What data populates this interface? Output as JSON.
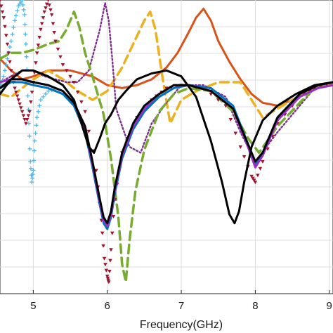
{
  "chart_data": {
    "type": "line",
    "title": "",
    "xlabel": "Frequency(GHz)",
    "ylabel": "",
    "xlim": [
      4.55,
      9.05
    ],
    "ylim": [
      0,
      1
    ],
    "x_ticks": [
      "5",
      "6",
      "7",
      "8",
      "9"
    ],
    "x_tick_values": [
      5,
      6,
      7,
      8,
      9
    ],
    "grid": true,
    "legend": "none",
    "series": [
      {
        "color": "#d95319",
        "style": "solid",
        "marker": "none",
        "x": [
          4.55,
          4.7,
          4.85,
          5.0,
          5.2,
          5.5,
          5.8,
          6.0,
          6.2,
          6.4,
          6.6,
          6.8,
          6.95,
          7.1,
          7.2,
          7.3,
          7.4,
          7.5,
          7.65,
          7.8,
          7.95,
          8.1,
          8.3,
          8.5,
          8.7,
          8.85,
          9.05
        ],
        "y": [
          0.8,
          0.76,
          0.73,
          0.74,
          0.76,
          0.76,
          0.74,
          0.71,
          0.7,
          0.71,
          0.73,
          0.77,
          0.82,
          0.89,
          0.94,
          0.97,
          0.93,
          0.86,
          0.79,
          0.73,
          0.68,
          0.65,
          0.64,
          0.66,
          0.69,
          0.71,
          0.71
        ]
      },
      {
        "color": "#edb120",
        "style": "dashed",
        "marker": "none",
        "x": [
          4.55,
          4.7,
          4.85,
          5.0,
          5.2,
          5.4,
          5.6,
          5.8,
          6.0,
          6.2,
          6.35,
          6.5,
          6.58,
          6.65,
          6.75,
          6.85,
          7.0,
          7.2,
          7.5,
          7.8,
          8.1,
          8.5,
          8.8,
          9.05
        ],
        "y": [
          0.68,
          0.67,
          0.7,
          0.73,
          0.76,
          0.73,
          0.69,
          0.66,
          0.69,
          0.77,
          0.85,
          0.93,
          0.96,
          0.9,
          0.73,
          0.58,
          0.66,
          0.69,
          0.72,
          0.72,
          0.6,
          0.66,
          0.7,
          0.72
        ]
      },
      {
        "color": "#7e2f8e",
        "style": "dotted",
        "marker": "none",
        "x": [
          4.55,
          4.7,
          4.85,
          5.0,
          5.15,
          5.3,
          5.45,
          5.6,
          5.75,
          5.9,
          5.97,
          6.02,
          6.07,
          6.12,
          6.2,
          6.3,
          6.45,
          6.6,
          6.8,
          7.0,
          7.3,
          7.6,
          7.8,
          8.0,
          8.3,
          8.6,
          8.8,
          9.05
        ],
        "y": [
          0.72,
          0.74,
          0.76,
          0.76,
          0.74,
          0.73,
          0.72,
          0.72,
          0.76,
          0.9,
          0.99,
          0.93,
          0.79,
          0.63,
          0.57,
          0.5,
          0.48,
          0.58,
          0.65,
          0.71,
          0.71,
          0.67,
          0.55,
          0.45,
          0.55,
          0.64,
          0.7,
          0.72
        ]
      },
      {
        "color": "#77ac30",
        "style": "dashed",
        "marker": "none",
        "x": [
          4.55,
          4.7,
          4.85,
          5.0,
          5.2,
          5.35,
          5.45,
          5.55,
          5.62,
          5.7,
          5.8,
          5.95,
          6.05,
          6.15,
          6.2,
          6.25,
          6.3,
          6.38,
          6.5,
          6.7,
          6.9,
          7.1,
          7.4,
          7.7,
          7.9,
          8.05,
          8.3,
          8.6,
          8.8,
          9.05
        ],
        "y": [
          0.8,
          0.82,
          0.82,
          0.83,
          0.85,
          0.86,
          0.9,
          0.96,
          0.91,
          0.82,
          0.74,
          0.61,
          0.46,
          0.26,
          0.1,
          0.04,
          0.18,
          0.35,
          0.49,
          0.62,
          0.68,
          0.7,
          0.69,
          0.62,
          0.53,
          0.48,
          0.57,
          0.65,
          0.7,
          0.72
        ]
      },
      {
        "color": "#4db8ec",
        "style": "none",
        "marker": "plus",
        "x": [
          4.55,
          4.6,
          4.65,
          4.7,
          4.75,
          4.8,
          4.85,
          4.88,
          4.9,
          4.92,
          4.94,
          4.96,
          4.98,
          5.0,
          5.02,
          5.05,
          5.1,
          5.2,
          5.35
        ],
        "y": [
          0.7,
          0.74,
          0.8,
          0.86,
          0.93,
          0.98,
          1.0,
          0.95,
          0.85,
          0.72,
          0.58,
          0.45,
          0.38,
          0.42,
          0.52,
          0.6,
          0.66,
          0.69,
          0.7
        ]
      },
      {
        "color": "#a2142f",
        "style": "none",
        "marker": "triangle",
        "x": [
          4.55,
          4.6,
          4.65,
          4.7,
          4.75,
          4.8,
          4.85,
          4.9,
          4.95,
          5.0,
          5.05,
          5.1,
          5.15,
          5.2,
          5.25,
          5.3,
          5.4,
          5.55,
          5.7,
          5.85,
          5.92,
          5.96,
          6.0,
          6.02,
          6.05,
          6.1,
          6.2,
          6.4,
          6.6,
          6.8,
          7.0,
          7.3,
          7.6,
          7.8,
          7.95,
          8.0,
          8.1,
          8.3,
          8.6,
          8.8,
          9.05
        ],
        "y": [
          1.0,
          0.94,
          0.85,
          0.76,
          0.7,
          0.66,
          0.62,
          0.58,
          0.62,
          0.72,
          0.82,
          0.9,
          0.96,
          1.0,
          0.95,
          0.86,
          0.78,
          0.72,
          0.62,
          0.42,
          0.25,
          0.12,
          0.06,
          0.04,
          0.15,
          0.32,
          0.48,
          0.6,
          0.66,
          0.7,
          0.71,
          0.7,
          0.64,
          0.5,
          0.4,
          0.38,
          0.45,
          0.58,
          0.67,
          0.7,
          0.72
        ]
      },
      {
        "color": "#0072bd",
        "style": "solid",
        "marker": "none",
        "x": [
          4.55,
          4.7,
          4.85,
          5.0,
          5.2,
          5.4,
          5.55,
          5.7,
          5.8,
          5.9,
          5.95,
          6.0,
          6.05,
          6.1,
          6.2,
          6.35,
          6.5,
          6.7,
          6.9,
          7.1,
          7.4,
          7.7,
          7.9,
          8.0,
          8.1,
          8.3,
          8.6,
          8.85,
          9.05
        ],
        "y": [
          0.7,
          0.72,
          0.72,
          0.71,
          0.7,
          0.68,
          0.64,
          0.55,
          0.43,
          0.3,
          0.24,
          0.22,
          0.26,
          0.34,
          0.46,
          0.56,
          0.62,
          0.67,
          0.7,
          0.71,
          0.7,
          0.64,
          0.51,
          0.44,
          0.48,
          0.6,
          0.68,
          0.71,
          0.72
        ]
      },
      {
        "color": "#9b30c8",
        "style": "solid",
        "marker": "none",
        "x": [
          4.55,
          4.7,
          4.85,
          5.0,
          5.2,
          5.4,
          5.55,
          5.7,
          5.8,
          5.9,
          5.95,
          6.0,
          6.05,
          6.1,
          6.2,
          6.35,
          6.5,
          6.7,
          6.9,
          7.1,
          7.4,
          7.7,
          7.9,
          8.0,
          8.1,
          8.3,
          8.6,
          8.85,
          9.05
        ],
        "y": [
          0.72,
          0.73,
          0.73,
          0.72,
          0.71,
          0.69,
          0.65,
          0.56,
          0.44,
          0.31,
          0.25,
          0.23,
          0.27,
          0.35,
          0.47,
          0.57,
          0.63,
          0.68,
          0.71,
          0.71,
          0.69,
          0.63,
          0.5,
          0.43,
          0.47,
          0.59,
          0.67,
          0.7,
          0.71
        ]
      },
      {
        "color": "#000000",
        "style": "solid",
        "marker": "none",
        "x": [
          4.55,
          4.7,
          4.85,
          5.0,
          5.2,
          5.4,
          5.55,
          5.65,
          5.75,
          5.82,
          5.9,
          5.97,
          6.05,
          6.15,
          6.25,
          6.4,
          6.6,
          6.8,
          7.0,
          7.2,
          7.4,
          7.55,
          7.65,
          7.72,
          7.78,
          7.85,
          7.95,
          8.1,
          8.3,
          8.55,
          8.8,
          9.05
        ],
        "y": [
          0.68,
          0.73,
          0.76,
          0.76,
          0.74,
          0.71,
          0.66,
          0.58,
          0.5,
          0.48,
          0.53,
          0.58,
          0.61,
          0.66,
          0.69,
          0.73,
          0.75,
          0.76,
          0.74,
          0.67,
          0.52,
          0.38,
          0.27,
          0.24,
          0.28,
          0.38,
          0.5,
          0.59,
          0.64,
          0.68,
          0.71,
          0.72
        ]
      },
      {
        "color": "#000000",
        "style": "solid",
        "marker": "none",
        "x": [
          4.55,
          4.7,
          4.85,
          5.0,
          5.2,
          5.4,
          5.55,
          5.7,
          5.8,
          5.9,
          5.95,
          6.0,
          6.05,
          6.1,
          6.2,
          6.35,
          6.5,
          6.7,
          6.9,
          7.1,
          7.4,
          7.7,
          7.9,
          8.0,
          8.1,
          8.3,
          8.6,
          8.85,
          9.05
        ],
        "y": [
          0.7,
          0.73,
          0.73,
          0.72,
          0.71,
          0.69,
          0.65,
          0.57,
          0.45,
          0.32,
          0.26,
          0.24,
          0.28,
          0.36,
          0.48,
          0.58,
          0.64,
          0.68,
          0.71,
          0.71,
          0.69,
          0.63,
          0.51,
          0.45,
          0.48,
          0.6,
          0.68,
          0.71,
          0.72
        ]
      }
    ]
  }
}
